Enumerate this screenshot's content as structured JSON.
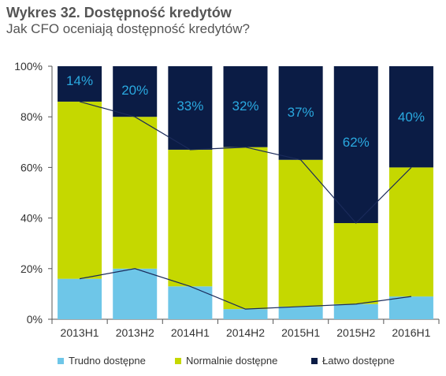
{
  "title": "Wykres 32. Dostępność kredytów",
  "subtitle": "Jak CFO oceniają dostępność kredytów?",
  "colors": {
    "trudno": "#6ec6e8",
    "normalnie": "#c5d800",
    "latwo": "#0b1c45",
    "latwo_label": "#2aa9e0",
    "axis": "#555555",
    "line": "#1a2a5a"
  },
  "chart_data": {
    "type": "bar",
    "stacked": true,
    "categories": [
      "2013H1",
      "2013H2",
      "2014H1",
      "2014H2",
      "2015H1",
      "2015H2",
      "2016H1"
    ],
    "series": [
      {
        "name": "Trudno dostępne",
        "values": [
          16,
          20,
          13,
          4,
          5,
          6,
          9
        ]
      },
      {
        "name": "Normalnie dostępne",
        "values": [
          70,
          60,
          54,
          64,
          58,
          32,
          51
        ]
      },
      {
        "name": "Łatwo dostępne",
        "values": [
          14,
          20,
          33,
          32,
          37,
          62,
          40
        ]
      }
    ],
    "data_labels": [
      "14%",
      "20%",
      "33%",
      "32%",
      "37%",
      "62%",
      "40%"
    ],
    "ylim": [
      0,
      100
    ],
    "yticks": [
      "0%",
      "20%",
      "40%",
      "60%",
      "80%",
      "100%"
    ],
    "legend_position": "bottom"
  }
}
